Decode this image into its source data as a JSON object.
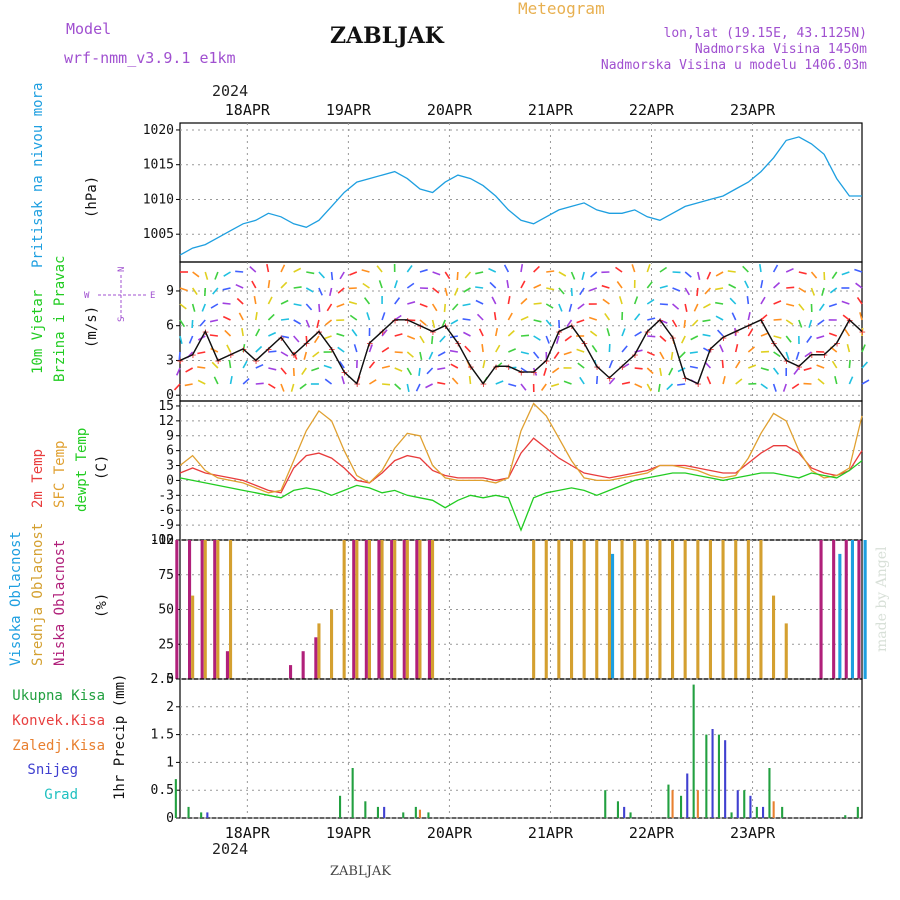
{
  "header": {
    "model_label": "Model",
    "model_name": "wrf-nmm_v3.9.1  e1km",
    "station": "ZABLJAK",
    "product": "Meteogram",
    "lonlat": "lon,lat (19.15E, 43.1125N)",
    "elevation": "Nadmorska Visina 1450m",
    "elevation_model": "Nadmorska Visina u modelu 1406.03m",
    "year": "2024",
    "footer_station": "ZABLJAK",
    "watermark": "made by Angel"
  },
  "colors": {
    "pressure": "#1e9fe0",
    "temp2m": "#e83c3c",
    "sfc": "#e0a030",
    "dewpt": "#22cc22",
    "high_cloud": "#1e9fe0",
    "mid_cloud": "#d4a030",
    "low_cloud": "#b0207a",
    "total_precip": "#22a040",
    "conv_precip": "#e84040",
    "frozen_precip": "#e88030",
    "snow": "#4040d0",
    "grad": "#20c0c0",
    "label_purple": "#a050d0",
    "label_orange": "#e8b050"
  },
  "chart_data": [
    {
      "type": "line",
      "id": "pressure",
      "ylabel": "Pritisak na nivou mora",
      "unit": "(hPa)",
      "ylim": [
        1001,
        1021
      ],
      "yticks": [
        1005,
        1010,
        1015,
        1020
      ],
      "x_hours_start": 0,
      "x_hours_step": 3,
      "series": [
        {
          "values": [
            1002.0,
            1003.0,
            1003.5,
            1004.5,
            1005.5,
            1006.5,
            1007.0,
            1008.0,
            1007.5,
            1006.5,
            1006.0,
            1007.0,
            1009.0,
            1011.0,
            1012.5,
            1013.0,
            1013.5,
            1014.0,
            1013.0,
            1011.5,
            1011.0,
            1012.5,
            1013.5,
            1013.0,
            1012.0,
            1010.5,
            1008.5,
            1007.0,
            1006.5,
            1007.5,
            1008.5,
            1009.0,
            1009.5,
            1008.5,
            1008.0,
            1008.0,
            1008.5,
            1007.5,
            1007.0,
            1008.0,
            1009.0,
            1009.5,
            1010.0,
            1010.5,
            1011.5,
            1012.5,
            1014.0,
            1016.0,
            1018.5,
            1019.0,
            1018.0,
            1016.5,
            1013.0,
            1010.5,
            1010.5
          ]
        }
      ]
    },
    {
      "type": "line",
      "id": "wind",
      "ylabel": "10m Vjetar Brzina i Pravac",
      "unit": "(m/s)",
      "compass": {
        "n": "N",
        "s": "S",
        "e": "E",
        "w": "W"
      },
      "ylim": [
        -0.5,
        11.5
      ],
      "yticks": [
        0,
        3,
        6,
        9
      ],
      "x_hours_start": 0,
      "x_hours_step": 3,
      "series": [
        {
          "values": [
            3.0,
            3.5,
            5.5,
            3.0,
            3.5,
            4.0,
            3.0,
            4.0,
            5.0,
            3.5,
            4.5,
            5.5,
            4.0,
            2.0,
            1.0,
            4.5,
            5.5,
            6.5,
            6.5,
            6.0,
            5.5,
            6.0,
            4.5,
            2.5,
            1.0,
            2.5,
            2.5,
            2.0,
            2.0,
            3.0,
            5.5,
            6.0,
            4.5,
            2.5,
            1.5,
            2.5,
            3.5,
            5.5,
            6.5,
            5.0,
            1.5,
            1.0,
            4.0,
            5.0,
            5.5,
            6.0,
            6.5,
            4.5,
            3.0,
            2.5,
            3.5,
            3.5,
            4.5,
            6.5,
            5.5
          ]
        }
      ]
    },
    {
      "type": "line",
      "id": "temperature",
      "unit": "(C)",
      "ylim": [
        -12,
        16
      ],
      "yticks": [
        -12,
        -9,
        -6,
        -3,
        0,
        3,
        6,
        9,
        12,
        15
      ],
      "x_hours_start": 0,
      "x_hours_step": 3,
      "series": [
        {
          "name": "2m Temp",
          "values": [
            1.5,
            2.5,
            1.5,
            1.0,
            0.5,
            0.0,
            -1.0,
            -2.0,
            -2.5,
            2.5,
            5.0,
            5.5,
            4.5,
            2.5,
            0.0,
            -0.5,
            1.5,
            4.0,
            5.0,
            4.5,
            2.0,
            1.0,
            0.5,
            0.5,
            0.5,
            0.0,
            0.5,
            5.5,
            8.5,
            6.5,
            4.5,
            3.0,
            1.5,
            1.0,
            0.5,
            1.0,
            1.5,
            2.0,
            3.0,
            3.0,
            3.0,
            2.5,
            2.0,
            1.5,
            1.5,
            3.5,
            5.5,
            7.0,
            7.0,
            5.5,
            2.5,
            1.5,
            1.0,
            2.0,
            6.0
          ]
        },
        {
          "name": "SFC Temp",
          "values": [
            3.0,
            5.0,
            2.0,
            0.5,
            0.0,
            -0.5,
            -1.5,
            -2.5,
            -2.0,
            4.0,
            10.0,
            14.0,
            12.0,
            6.0,
            1.0,
            -0.5,
            2.0,
            6.5,
            9.5,
            9.0,
            3.0,
            0.5,
            0.0,
            0.0,
            0.0,
            -0.5,
            0.5,
            10.0,
            15.5,
            13.0,
            8.5,
            4.0,
            0.5,
            0.0,
            0.0,
            0.5,
            1.0,
            1.5,
            3.0,
            3.0,
            2.5,
            2.0,
            1.0,
            0.5,
            1.0,
            4.5,
            9.5,
            13.5,
            12.0,
            6.0,
            2.0,
            0.5,
            1.0,
            2.5,
            13.0
          ]
        },
        {
          "name": "dewpt Temp",
          "values": [
            0.5,
            0.0,
            -0.5,
            -1.0,
            -1.5,
            -2.0,
            -2.5,
            -3.0,
            -3.5,
            -2.0,
            -1.5,
            -2.0,
            -3.0,
            -2.0,
            -1.0,
            -1.5,
            -2.5,
            -2.0,
            -3.0,
            -3.5,
            -4.0,
            -5.5,
            -4.0,
            -3.0,
            -3.5,
            -3.0,
            -3.5,
            -10.0,
            -3.5,
            -2.5,
            -2.0,
            -1.5,
            -2.0,
            -3.0,
            -2.0,
            -1.0,
            0.0,
            0.5,
            1.0,
            1.5,
            1.5,
            1.0,
            0.5,
            0.0,
            0.5,
            1.0,
            1.5,
            1.5,
            1.0,
            0.5,
            1.5,
            1.0,
            0.5,
            2.0,
            4.0
          ]
        }
      ]
    },
    {
      "type": "bar",
      "id": "clouds",
      "unit": "(%)",
      "ylim": [
        0,
        100
      ],
      "yticks": [
        0,
        25,
        50,
        75,
        100
      ],
      "x_hours_start": 0,
      "x_hours_step": 3,
      "series": [
        {
          "name": "Niska Oblacnost",
          "values": [
            100,
            100,
            100,
            100,
            20,
            0,
            0,
            0,
            0,
            10,
            20,
            30,
            0,
            0,
            100,
            100,
            100,
            100,
            100,
            100,
            100,
            0,
            0,
            0,
            0,
            0,
            0,
            0,
            0,
            0,
            0,
            0,
            0,
            0,
            0,
            0,
            0,
            0,
            0,
            0,
            0,
            0,
            0,
            0,
            0,
            0,
            0,
            0,
            0,
            0,
            0,
            100,
            100,
            100,
            100
          ]
        },
        {
          "name": "Srednja Oblacnost",
          "values": [
            0,
            60,
            100,
            100,
            100,
            0,
            0,
            0,
            0,
            0,
            0,
            40,
            50,
            100,
            100,
            100,
            100,
            100,
            100,
            100,
            100,
            0,
            0,
            0,
            0,
            0,
            0,
            0,
            100,
            100,
            100,
            100,
            100,
            100,
            100,
            100,
            100,
            100,
            100,
            100,
            100,
            100,
            100,
            100,
            100,
            100,
            100,
            60,
            40,
            0,
            0,
            0,
            0,
            0,
            0
          ]
        },
        {
          "name": "Visoka Oblacnost",
          "values": [
            0,
            0,
            0,
            0,
            0,
            0,
            0,
            0,
            0,
            0,
            0,
            0,
            0,
            0,
            0,
            0,
            0,
            0,
            0,
            0,
            0,
            0,
            0,
            0,
            0,
            0,
            0,
            0,
            0,
            0,
            0,
            0,
            0,
            0,
            90,
            0,
            0,
            0,
            0,
            0,
            0,
            0,
            0,
            0,
            0,
            0,
            0,
            0,
            0,
            0,
            0,
            0,
            90,
            100,
            100
          ]
        }
      ]
    },
    {
      "type": "bar",
      "id": "precip",
      "ylabel": "1hr Precip",
      "unit": "(mm)",
      "ylim": [
        0,
        2.5
      ],
      "yticks": [
        0,
        0.5,
        1,
        1.5,
        2,
        2.5
      ],
      "x_hours_start": 0,
      "x_hours_step": 3,
      "series": [
        {
          "name": "Ukupna Kisa",
          "values": [
            0.7,
            0.2,
            0.1,
            0,
            0,
            0,
            0,
            0,
            0,
            0,
            0,
            0,
            0,
            0.4,
            0.9,
            0.3,
            0.2,
            0,
            0.1,
            0.2,
            0.1,
            0,
            0,
            0,
            0,
            0,
            0,
            0,
            0,
            0,
            0,
            0,
            0,
            0,
            0.5,
            0.3,
            0.1,
            0,
            0,
            0.6,
            0.4,
            2.4,
            1.5,
            1.5,
            0.1,
            0.5,
            0.2,
            0.9,
            0.2,
            0,
            0,
            0,
            0,
            0.05,
            0.2
          ]
        },
        {
          "name": "Konvek.Kisa",
          "values": [
            0,
            0,
            0,
            0,
            0,
            0,
            0,
            0,
            0,
            0,
            0,
            0,
            0,
            0,
            0,
            0,
            0,
            0,
            0,
            0,
            0,
            0,
            0,
            0,
            0,
            0,
            0,
            0,
            0,
            0,
            0,
            0,
            0,
            0,
            0,
            0,
            0,
            0,
            0,
            0,
            0,
            0,
            0,
            0,
            0,
            0,
            0,
            0,
            0,
            0,
            0,
            0,
            0,
            0,
            0
          ]
        },
        {
          "name": "Zaledj.Kisa",
          "values": [
            0,
            0,
            0,
            0,
            0,
            0,
            0,
            0,
            0,
            0,
            0,
            0,
            0,
            0,
            0,
            0,
            0,
            0,
            0,
            0.15,
            0,
            0,
            0,
            0,
            0,
            0,
            0,
            0,
            0,
            0,
            0,
            0,
            0,
            0,
            0,
            0,
            0,
            0,
            0,
            0.5,
            0,
            0.5,
            0,
            0,
            0,
            0,
            0,
            0.3,
            0,
            0,
            0,
            0,
            0,
            0,
            0
          ]
        },
        {
          "name": "Snijeg",
          "values": [
            0,
            0,
            0.1,
            0,
            0,
            0,
            0,
            0,
            0,
            0,
            0,
            0,
            0,
            0,
            0,
            0,
            0.2,
            0,
            0,
            0,
            0,
            0,
            0,
            0,
            0,
            0,
            0,
            0,
            0,
            0,
            0,
            0,
            0,
            0,
            0,
            0.2,
            0,
            0,
            0,
            0,
            0.8,
            0,
            1.6,
            1.4,
            0.5,
            0.4,
            0.2,
            0,
            0,
            0,
            0,
            0,
            0,
            0,
            0
          ]
        },
        {
          "name": "Grad",
          "values": [
            0,
            0,
            0,
            0,
            0,
            0,
            0,
            0,
            0,
            0,
            0,
            0,
            0,
            0,
            0,
            0,
            0,
            0,
            0,
            0,
            0,
            0,
            0,
            0,
            0,
            0,
            0,
            0,
            0,
            0,
            0,
            0,
            0,
            0,
            0,
            0,
            0,
            0,
            0,
            0,
            0,
            0,
            0,
            0,
            0,
            0,
            0,
            0,
            0,
            0,
            0,
            0,
            0,
            0,
            0
          ]
        }
      ]
    }
  ],
  "x_axis": {
    "ticks": [
      {
        "label": "18APR",
        "hours": 16
      },
      {
        "label": "19APR",
        "hours": 40
      },
      {
        "label": "20APR",
        "hours": 64
      },
      {
        "label": "21APR",
        "hours": 88
      },
      {
        "label": "22APR",
        "hours": 112
      },
      {
        "label": "23APR",
        "hours": 136
      }
    ],
    "total_hours": 162
  },
  "labels": {
    "temp_2m": "2m Temp",
    "temp_sfc": "SFC Temp",
    "temp_dewpt": "dewpt Temp",
    "cloud_high": "Visoka Oblacnost",
    "cloud_mid": "Srednja Oblacnost",
    "cloud_low": "Niska Oblacnost",
    "precip_total": "Ukupna  Kisa",
    "precip_conv": "Konvek.Kisa",
    "precip_frozen": "Zaledj.Kisa",
    "precip_snow": "Snijeg",
    "precip_grad": "Grad"
  }
}
